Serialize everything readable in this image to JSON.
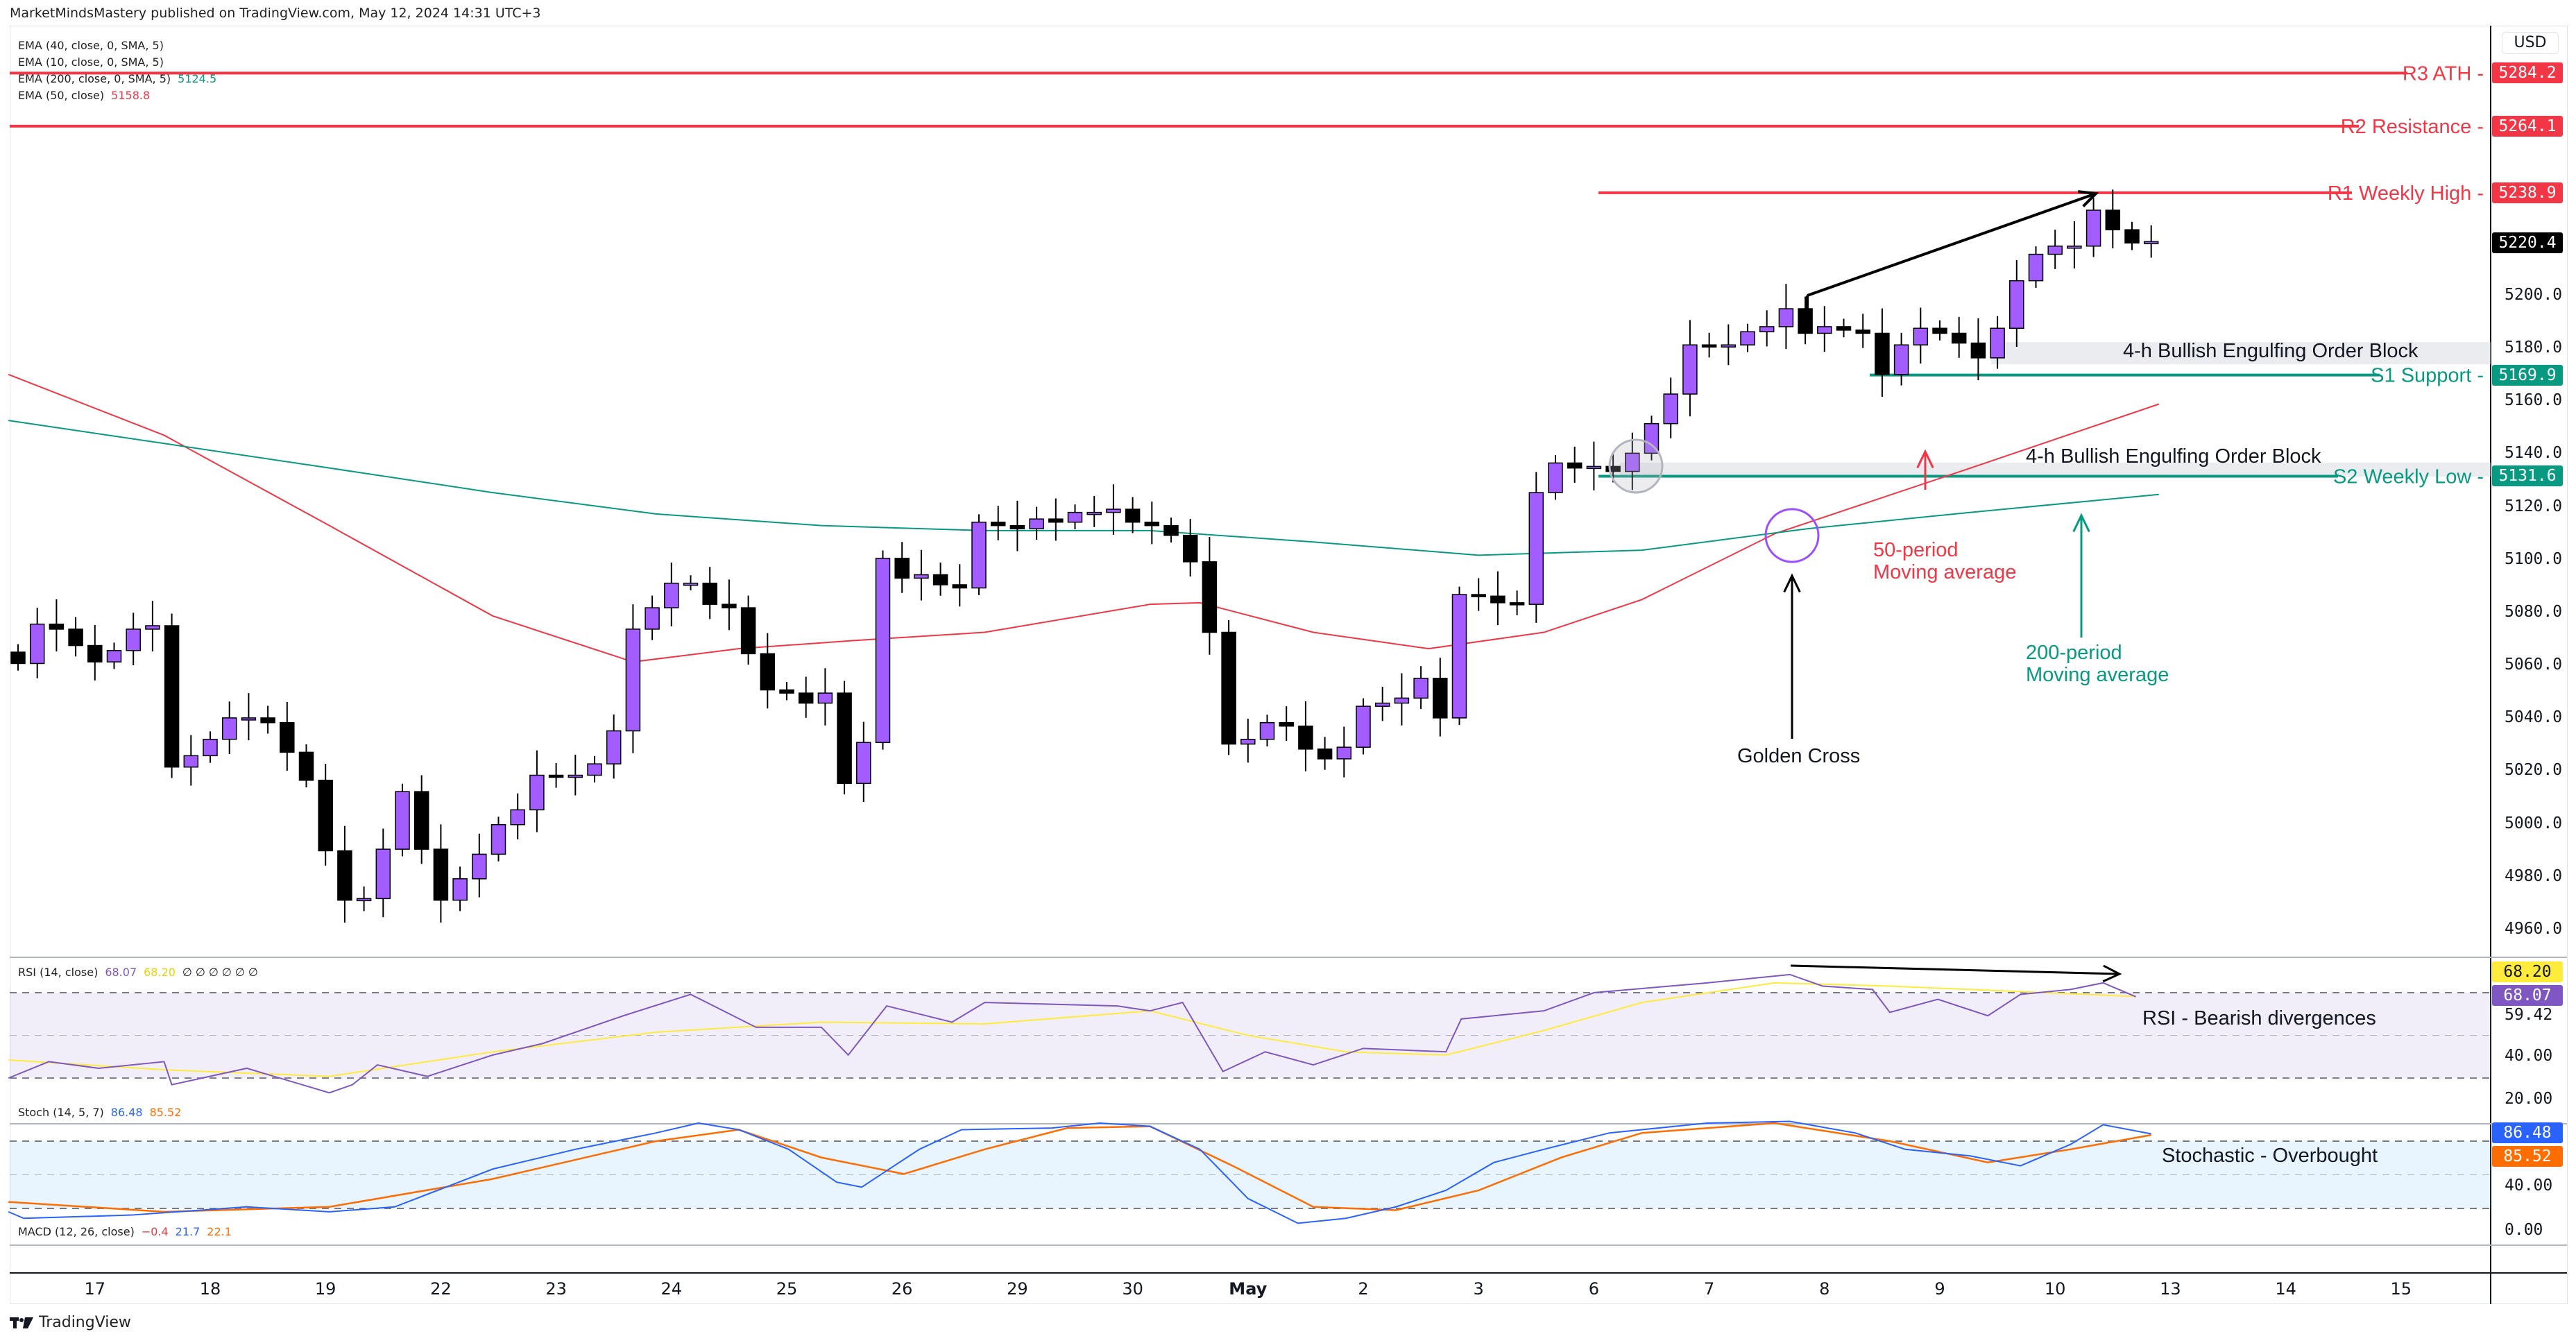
{
  "header": {
    "published": "MarketMindsMastery published on TradingView.com, May 12, 2024 14:31 UTC+3"
  },
  "legend": {
    "ema40": "EMA (40, close, 0, SMA, 5)",
    "ema10": "EMA (10, close, 0, SMA, 5)",
    "ema200": "EMA (200, close, 0, SMA, 5)",
    "ema200_value": "5124.5",
    "ema50": "EMA (50, close)",
    "ema50_value": "5158.8",
    "rsi": "RSI (14, close)",
    "rsi_value": "68.07",
    "rsi_ma_value": "68.20",
    "rsi_empty": "∅ ∅ ∅ ∅ ∅ ∅",
    "stoch": "Stoch (14, 5, 7)",
    "stoch_k": "86.48",
    "stoch_d": "85.52",
    "macd": "MACD (12, 26, close)",
    "macd_hist": "−0.4",
    "macd_line": "21.7",
    "macd_signal": "22.1"
  },
  "axis": {
    "currency": "USD",
    "price_ticks": [
      "5200.0",
      "5180.0",
      "5160.0",
      "5140.0",
      "5120.0",
      "5100.0",
      "5080.0",
      "5060.0",
      "5040.0",
      "5020.0",
      "5000.0",
      "4980.0",
      "4960.0"
    ],
    "rsi_ticks": [
      "59.42",
      "40.00",
      "20.00"
    ],
    "stoch_ticks": [
      "40.00",
      "0.00"
    ],
    "dates": [
      "17",
      "18",
      "19",
      "22",
      "23",
      "24",
      "25",
      "26",
      "29",
      "30",
      "May",
      "2",
      "3",
      "6",
      "7",
      "8",
      "9",
      "10",
      "13",
      "14",
      "15"
    ]
  },
  "levels": [
    {
      "label": "R3 ATH",
      "price": 5284.2,
      "price_label": "5284.2",
      "color": "#f23645"
    },
    {
      "label": "R2 Resistance",
      "price": 5264.1,
      "price_label": "5264.1",
      "color": "#f23645"
    },
    {
      "label": "R1 Weekly High",
      "price": 5238.9,
      "price_label": "5238.9",
      "color": "#f23645"
    },
    {
      "label": "S1 Support",
      "price": 5169.9,
      "price_label": "5169.9",
      "color": "#089981"
    },
    {
      "label": "S2 Weekly Low",
      "price": 5131.6,
      "price_label": "5131.6",
      "color": "#089981"
    }
  ],
  "last_price": "5220.4",
  "rsi_tags": {
    "ma": "68.20",
    "rsi": "68.07"
  },
  "stoch_tags": {
    "k": "86.48",
    "d": "85.52"
  },
  "annotations": {
    "order_block_1": "4-h Bullish Engulfing Order Block",
    "order_block_2": "4-h Bullish Engulfing Order Block",
    "golden_cross": "Golden Cross",
    "ma50_line1": "50-period",
    "ma50_line2": "Moving average",
    "ma200_line1": "200-period",
    "ma200_line2": "Moving average",
    "rsi_note": "RSI - Bearish divergences",
    "stoch_note": "Stochastic - Overbought"
  },
  "footer": {
    "brand": "TradingView"
  },
  "colors": {
    "bull": "#a35cff",
    "bear": "#000000",
    "ema50": "#f23645",
    "ema200": "#089981",
    "rsi": "#7e57c2",
    "rsi_ma": "#ffeb3b",
    "stoch_k": "#2962ff",
    "stoch_d": "#ff6d00"
  },
  "chart_data": {
    "type": "candlestick",
    "timeframe": "4h",
    "closes": [
      5060.7,
      5075.6,
      5073.7,
      5067.5,
      5061.3,
      5065.6,
      5073.7,
      5075,
      5021.5,
      5025.8,
      5032,
      5040.1,
      5040.1,
      5038.3,
      5027.1,
      5016.5,
      4989.8,
      4971.1,
      4971.7,
      4990.4,
      5012.2,
      4990.4,
      4971.1,
      4979.2,
      4988.5,
      4999.7,
      5005.3,
      5018.4,
      5017.8,
      5018.4,
      5022.7,
      5035.2,
      5073.7,
      5081.8,
      5091.1,
      5091.1,
      5083.1,
      5081.8,
      5064.4,
      5050.7,
      5049.5,
      5045.7,
      5049.5,
      5015.3,
      5030.8,
      5100.5,
      5093,
      5094.3,
      5090.5,
      5089.3,
      5114.2,
      5112.9,
      5111.7,
      5115.4,
      5114.2,
      5117.9,
      5117.9,
      5119.1,
      5114.2,
      5112.9,
      5109.2,
      5099.2,
      5072.5,
      5030.2,
      5032,
      5038.3,
      5037,
      5028.3,
      5024.6,
      5029,
      5044.5,
      5045.7,
      5047.6,
      5055.1,
      5040.1,
      5086.8,
      5086.2,
      5083.7,
      5083.1,
      5125.4,
      5136.6,
      5134.7,
      5135.3,
      5133.4,
      5140.3,
      5151.5,
      5162.7,
      5181.3,
      5180.7,
      5181.3,
      5186.3,
      5188.2,
      5195,
      5185.7,
      5188.2,
      5186.9,
      5185.7,
      5170.1,
      5181.3,
      5187.6,
      5185.7,
      5182,
      5176.4,
      5187.6,
      5205.6,
      5215.6,
      5218.7,
      5218.7,
      5232.3,
      5224.9,
      5219.9,
      5220.4
    ],
    "first_open": 5065,
    "ema50": {
      "x": [
        -0.5,
        7.6,
        16.2,
        24.7,
        32,
        37.5,
        43.5,
        50.3,
        58.9,
        61.5,
        67.4,
        73.4,
        79.4,
        84.5,
        91.4,
        101.6,
        111.4
      ],
      "y": [
        5170.1,
        5147.1,
        5112.9,
        5078.7,
        5061.3,
        5066.3,
        5069.4,
        5072.5,
        5083.1,
        5083.7,
        5072.5,
        5066.3,
        5072.5,
        5084.9,
        5109.8,
        5134.7,
        5158.9
      ]
    },
    "ema200": {
      "x": [
        -0.5,
        7.6,
        16.2,
        24.7,
        33.2,
        41.8,
        50.3,
        58.9,
        67.4,
        76,
        84.5,
        93.1,
        101.6,
        111.4
      ],
      "y": [
        5152.7,
        5144,
        5134.7,
        5125.4,
        5117.3,
        5112.9,
        5111,
        5111,
        5106.7,
        5101.7,
        5103.6,
        5111.7,
        5117.9,
        5124.7
      ]
    },
    "rsi": {
      "levels": [
        70,
        50,
        30
      ],
      "x": [
        -0.5,
        1.6,
        4.2,
        7.6,
        8,
        11.9,
        16.2,
        17.4,
        18.7,
        21.3,
        24.7,
        27.3,
        31.5,
        35,
        38.4,
        41.8,
        43.2,
        45.2,
        48.6,
        50.3,
        57.2,
        58.9,
        60.6,
        62.7,
        64.9,
        67.4,
        70,
        74.3,
        75.1,
        79.4,
        82,
        87.9,
        92.2,
        93.9,
        96.5,
        97.4,
        99.9,
        102.5,
        104.2,
        106.8,
        108.5,
        110.2
      ],
      "y": [
        30,
        37.7,
        34.6,
        37.7,
        26.9,
        34.6,
        23.1,
        26.9,
        36.2,
        30.8,
        40.8,
        46.2,
        59.2,
        69.2,
        53.8,
        53.8,
        40.8,
        63.8,
        56.2,
        65.4,
        63.8,
        61.5,
        65.4,
        33.1,
        42.3,
        36.2,
        43.9,
        42.3,
        57.7,
        61.5,
        70,
        74.6,
        78.5,
        73.1,
        71.5,
        60.8,
        66.9,
        59.2,
        69.2,
        71.5,
        74.6,
        68.1
      ]
    },
    "rsi_ma": {
      "x": [
        -0.5,
        7.6,
        16.2,
        24.7,
        33.2,
        41.8,
        50.3,
        58.9,
        64,
        69.1,
        74.3,
        79.4,
        84.5,
        91.4,
        97.4,
        101.6,
        110.2
      ],
      "y": [
        38.5,
        33.9,
        30.8,
        42.3,
        51.5,
        56.2,
        55.4,
        61.5,
        50,
        42.3,
        40.8,
        52.3,
        65.4,
        74.6,
        73.1,
        71.5,
        68.2
      ]
    },
    "stoch_k": {
      "levels": [
        80,
        50,
        20
      ],
      "x": [
        -0.5,
        0.3,
        5.9,
        11.9,
        16.2,
        19.6,
        24.7,
        29,
        33.2,
        35.4,
        37.5,
        40.1,
        42.6,
        43.9,
        46.9,
        49.1,
        53.8,
        56.3,
        58.9,
        61.5,
        64,
        66.6,
        69.1,
        71.7,
        74.3,
        76.8,
        79.4,
        82.8,
        87.9,
        92.2,
        95.6,
        98.2,
        101.6,
        104.2,
        106.8,
        108.5,
        111
      ],
      "y": [
        17,
        11.2,
        14.1,
        21.4,
        17,
        21.4,
        55.1,
        72.7,
        87.3,
        96.1,
        90.2,
        72.7,
        43.4,
        39,
        72.7,
        90.2,
        91.7,
        96.1,
        93.2,
        72.7,
        28.8,
        6.8,
        11.2,
        21.4,
        36.1,
        61,
        72.7,
        87.3,
        96.1,
        97.6,
        87.3,
        72.7,
        66.8,
        58,
        77.1,
        94.6,
        86.5
      ]
    },
    "stoch_d": {
      "x": [
        -0.5,
        7.6,
        16.2,
        24.7,
        33.2,
        37.5,
        41.8,
        46.1,
        50.3,
        54.6,
        58.9,
        63.2,
        67.4,
        71.7,
        76,
        80.3,
        84.5,
        91.4,
        97.4,
        102.5,
        106.8,
        111
      ],
      "y": [
        25.8,
        17,
        21.4,
        46.3,
        80,
        90.2,
        65.4,
        50.7,
        72.7,
        91.7,
        93.2,
        58,
        21.4,
        18.5,
        36.1,
        65.4,
        87.3,
        96.1,
        80,
        61,
        72.7,
        85.5
      ]
    }
  }
}
